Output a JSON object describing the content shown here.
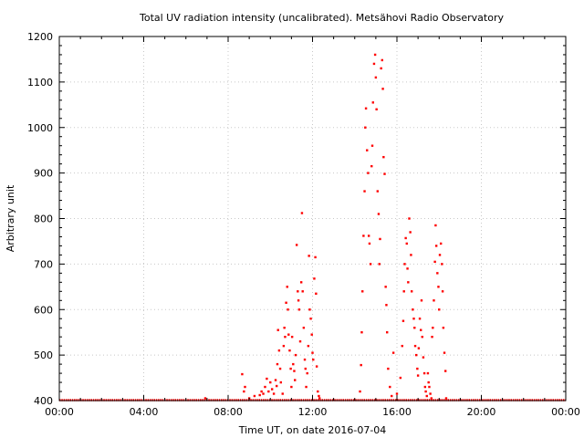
{
  "chart_data": {
    "type": "scatter",
    "title": "Total UV radiation intensity (uncalibrated). Metsähovi Radio Observatory",
    "xlabel": "Time UT, on date 2016-07-04",
    "ylabel": "Arbitrary unit",
    "xlim": [
      "00:00",
      "24:00"
    ],
    "ylim": [
      400,
      1200
    ],
    "x_ticks": [
      "00:00",
      "04:00",
      "08:00",
      "12:00",
      "16:00",
      "20:00",
      "00:00"
    ],
    "y_ticks": [
      400,
      500,
      600,
      700,
      800,
      900,
      1000,
      1100,
      1200
    ],
    "grid": true,
    "series": [
      {
        "color": "#ff0000",
        "baseline": {
          "value": 400,
          "from": "00:00",
          "to": "24:00"
        },
        "points": [
          [
            "06:55",
            405
          ],
          [
            "08:40",
            458
          ],
          [
            "08:45",
            420
          ],
          [
            "08:48",
            430
          ],
          [
            "09:00",
            405
          ],
          [
            "09:15",
            410
          ],
          [
            "09:30",
            412
          ],
          [
            "09:35",
            420
          ],
          [
            "09:40",
            415
          ],
          [
            "09:45",
            430
          ],
          [
            "09:50",
            448
          ],
          [
            "09:55",
            420
          ],
          [
            "10:00",
            440
          ],
          [
            "10:05",
            425
          ],
          [
            "10:10",
            415
          ],
          [
            "10:15",
            445
          ],
          [
            "10:18",
            432
          ],
          [
            "10:20",
            480
          ],
          [
            "10:22",
            555
          ],
          [
            "10:25",
            510
          ],
          [
            "10:28",
            470
          ],
          [
            "10:30",
            440
          ],
          [
            "10:35",
            415
          ],
          [
            "10:38",
            520
          ],
          [
            "10:40",
            560
          ],
          [
            "10:42",
            540
          ],
          [
            "10:45",
            615
          ],
          [
            "10:48",
            650
          ],
          [
            "10:50",
            600
          ],
          [
            "10:52",
            545
          ],
          [
            "10:55",
            510
          ],
          [
            "10:58",
            470
          ],
          [
            "11:00",
            430
          ],
          [
            "11:02",
            540
          ],
          [
            "11:05",
            480
          ],
          [
            "11:08",
            465
          ],
          [
            "11:10",
            445
          ],
          [
            "11:12",
            500
          ],
          [
            "11:15",
            742
          ],
          [
            "11:18",
            640
          ],
          [
            "11:20",
            620
          ],
          [
            "11:22",
            600
          ],
          [
            "11:25",
            530
          ],
          [
            "11:28",
            660
          ],
          [
            "11:30",
            812
          ],
          [
            "11:32",
            640
          ],
          [
            "11:35",
            560
          ],
          [
            "11:38",
            490
          ],
          [
            "11:40",
            470
          ],
          [
            "11:42",
            430
          ],
          [
            "11:45",
            460
          ],
          [
            "11:48",
            520
          ],
          [
            "11:50",
            718
          ],
          [
            "11:52",
            600
          ],
          [
            "11:55",
            580
          ],
          [
            "11:58",
            545
          ],
          [
            "12:00",
            505
          ],
          [
            "12:02",
            490
          ],
          [
            "12:05",
            668
          ],
          [
            "12:08",
            715
          ],
          [
            "12:10",
            635
          ],
          [
            "12:12",
            475
          ],
          [
            "12:15",
            420
          ],
          [
            "12:18",
            410
          ],
          [
            "12:20",
            405
          ],
          [
            "14:15",
            420
          ],
          [
            "14:18",
            478
          ],
          [
            "14:20",
            550
          ],
          [
            "14:22",
            640
          ],
          [
            "14:25",
            762
          ],
          [
            "14:28",
            860
          ],
          [
            "14:30",
            1000
          ],
          [
            "14:32",
            1042
          ],
          [
            "14:35",
            950
          ],
          [
            "14:38",
            900
          ],
          [
            "14:40",
            762
          ],
          [
            "14:42",
            745
          ],
          [
            "14:45",
            700
          ],
          [
            "14:48",
            915
          ],
          [
            "14:50",
            960
          ],
          [
            "14:52",
            1055
          ],
          [
            "14:55",
            1140
          ],
          [
            "14:58",
            1160
          ],
          [
            "15:00",
            1110
          ],
          [
            "15:02",
            1040
          ],
          [
            "15:05",
            860
          ],
          [
            "15:08",
            810
          ],
          [
            "15:10",
            700
          ],
          [
            "15:12",
            755
          ],
          [
            "15:15",
            1130
          ],
          [
            "15:18",
            1148
          ],
          [
            "15:20",
            1085
          ],
          [
            "15:22",
            935
          ],
          [
            "15:25",
            898
          ],
          [
            "15:28",
            650
          ],
          [
            "15:30",
            610
          ],
          [
            "15:32",
            550
          ],
          [
            "15:35",
            470
          ],
          [
            "15:40",
            430
          ],
          [
            "15:45",
            410
          ],
          [
            "15:50",
            505
          ],
          [
            "16:00",
            415
          ],
          [
            "16:10",
            450
          ],
          [
            "16:15",
            520
          ],
          [
            "16:18",
            575
          ],
          [
            "16:20",
            640
          ],
          [
            "16:22",
            700
          ],
          [
            "16:25",
            757
          ],
          [
            "16:28",
            745
          ],
          [
            "16:30",
            690
          ],
          [
            "16:32",
            660
          ],
          [
            "16:35",
            800
          ],
          [
            "16:38",
            770
          ],
          [
            "16:40",
            720
          ],
          [
            "16:42",
            640
          ],
          [
            "16:45",
            600
          ],
          [
            "16:48",
            580
          ],
          [
            "16:50",
            560
          ],
          [
            "16:52",
            520
          ],
          [
            "16:55",
            500
          ],
          [
            "16:58",
            470
          ],
          [
            "17:00",
            455
          ],
          [
            "17:02",
            515
          ],
          [
            "17:05",
            580
          ],
          [
            "17:08",
            555
          ],
          [
            "17:10",
            620
          ],
          [
            "17:12",
            540
          ],
          [
            "17:15",
            495
          ],
          [
            "17:18",
            460
          ],
          [
            "17:20",
            430
          ],
          [
            "17:22",
            420
          ],
          [
            "17:25",
            410
          ],
          [
            "17:28",
            460
          ],
          [
            "17:30",
            440
          ],
          [
            "17:32",
            430
          ],
          [
            "17:35",
            415
          ],
          [
            "17:38",
            405
          ],
          [
            "17:40",
            540
          ],
          [
            "17:42",
            560
          ],
          [
            "17:45",
            620
          ],
          [
            "17:48",
            705
          ],
          [
            "17:50",
            785
          ],
          [
            "17:52",
            740
          ],
          [
            "17:55",
            680
          ],
          [
            "17:58",
            650
          ],
          [
            "18:00",
            600
          ],
          [
            "18:02",
            720
          ],
          [
            "18:05",
            745
          ],
          [
            "18:08",
            700
          ],
          [
            "18:10",
            640
          ],
          [
            "18:12",
            560
          ],
          [
            "18:15",
            505
          ],
          [
            "18:18",
            465
          ],
          [
            "18:20",
            405
          ]
        ]
      }
    ]
  }
}
